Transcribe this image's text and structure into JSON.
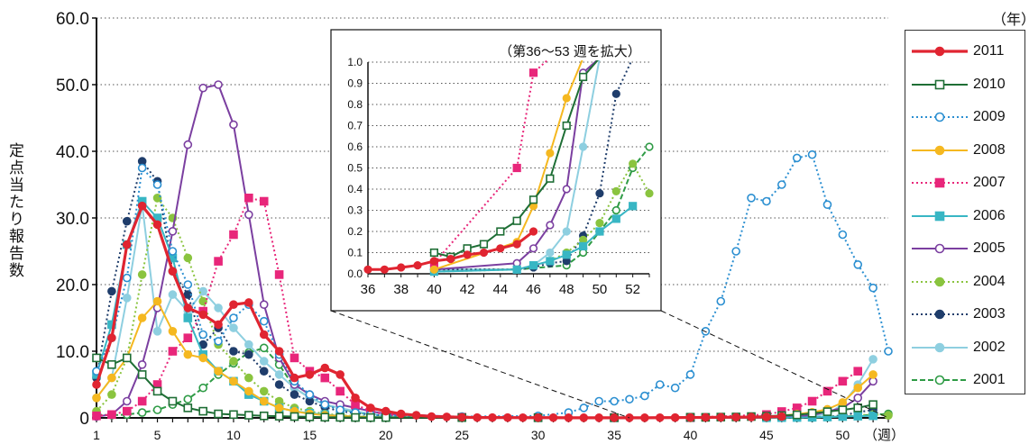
{
  "ylabel": "定点当たり報告数",
  "year_unit": "（年）",
  "week_unit": "（週）",
  "inset_title": "（第36～53 週を拡大）",
  "chart_data": [
    {
      "type": "line",
      "xlabel": "（週）",
      "ylabel": "定点当たり報告数",
      "xlim": [
        1,
        53
      ],
      "ylim": [
        0,
        60
      ],
      "xticks": [
        1,
        5,
        10,
        15,
        20,
        25,
        30,
        35,
        40,
        45,
        50
      ],
      "yticks": [
        "0",
        "10.0",
        "20.0",
        "30.0",
        "40.0",
        "50.0",
        "60.0"
      ],
      "grid": "horizontal dotted",
      "legend_position": "right",
      "legend_title": "（年）",
      "series": [
        {
          "name": "2001",
          "color": "#2e9b45",
          "style": "dashed",
          "marker": "circle-open",
          "x": [
            1,
            2,
            3,
            4,
            5,
            6,
            7,
            8,
            9,
            10,
            11,
            12,
            13,
            14,
            15,
            16,
            17,
            18,
            19,
            20,
            25,
            30,
            35,
            40,
            45,
            48,
            49,
            50,
            51,
            52,
            53
          ],
          "values": [
            0.5,
            0.4,
            0.5,
            0.8,
            1.2,
            2.0,
            2.8,
            4.5,
            6.5,
            8.2,
            9.8,
            10.5,
            8.0,
            4.5,
            3.0,
            2.0,
            1.4,
            0.9,
            0.5,
            0.3,
            0.1,
            0.05,
            0.02,
            0.02,
            0.02,
            0.04,
            0.1,
            0.2,
            0.3,
            0.5,
            0.6
          ]
        },
        {
          "name": "2002",
          "color": "#8ecfe0",
          "style": "solid",
          "marker": "circle",
          "x": [
            1,
            2,
            3,
            4,
            5,
            6,
            7,
            8,
            9,
            10,
            11,
            12,
            13,
            14,
            15,
            16,
            17,
            18,
            19,
            20,
            25,
            30,
            35,
            40,
            45,
            46,
            47,
            48,
            49,
            50,
            51,
            52
          ],
          "values": [
            3.0,
            6.0,
            18.0,
            32.0,
            13.0,
            18.5,
            16.0,
            19.0,
            16.5,
            13.5,
            11.0,
            8.5,
            6.5,
            4.5,
            3.0,
            2.0,
            1.5,
            1.0,
            0.6,
            0.3,
            0.1,
            0.05,
            0.02,
            0.02,
            0.02,
            0.04,
            0.1,
            0.2,
            0.6,
            2.0,
            5.0,
            8.8
          ]
        },
        {
          "name": "2003",
          "color": "#1f3d6b",
          "style": "dotted",
          "marker": "circle",
          "x": [
            1,
            2,
            3,
            4,
            5,
            6,
            7,
            8,
            9,
            10,
            11,
            12,
            13,
            14,
            15,
            16,
            17,
            18,
            19,
            20,
            25,
            30,
            35,
            40,
            45,
            46,
            47,
            48,
            49,
            50,
            51,
            52
          ],
          "values": [
            6.0,
            19.0,
            29.5,
            38.5,
            35.5,
            22.0,
            18.5,
            11.0,
            13.5,
            10.0,
            9.5,
            7.0,
            5.0,
            3.5,
            2.5,
            1.6,
            1.0,
            0.7,
            0.5,
            0.3,
            0.1,
            0.05,
            0.02,
            0.02,
            0.02,
            0.03,
            0.05,
            0.06,
            0.18,
            0.38,
            0.85,
            1.2
          ]
        },
        {
          "name": "2004",
          "color": "#8ac43f",
          "style": "dotted",
          "marker": "circle",
          "x": [
            1,
            2,
            3,
            4,
            5,
            6,
            7,
            8,
            9,
            10,
            11,
            12,
            13,
            14,
            15,
            16,
            17,
            18,
            19,
            20,
            25,
            30,
            35,
            40,
            45,
            46,
            47,
            48,
            49,
            50,
            51,
            52,
            53
          ],
          "values": [
            1.0,
            3.5,
            9.0,
            21.5,
            33.0,
            30.0,
            24.0,
            17.5,
            11.0,
            8.5,
            6.0,
            4.0,
            2.5,
            1.5,
            1.0,
            0.6,
            0.4,
            0.3,
            0.2,
            0.1,
            0.05,
            0.02,
            0.02,
            0.01,
            0.02,
            0.04,
            0.06,
            0.1,
            0.16,
            0.24,
            0.39,
            0.52,
            0.38
          ]
        },
        {
          "name": "2005",
          "color": "#7b3fa0",
          "style": "solid",
          "marker": "circle-open",
          "x": [
            1,
            2,
            3,
            4,
            5,
            6,
            7,
            8,
            9,
            10,
            11,
            12,
            13,
            14,
            15,
            16,
            17,
            18,
            19,
            20,
            25,
            30,
            35,
            40,
            45,
            46,
            47,
            48,
            49,
            50,
            51,
            52
          ],
          "values": [
            0.2,
            0.5,
            2.5,
            8.0,
            16.5,
            28.0,
            41.0,
            49.5,
            50.0,
            44.0,
            30.5,
            17.0,
            9.0,
            5.0,
            3.5,
            2.5,
            2.0,
            1.5,
            1.0,
            0.6,
            0.15,
            0.05,
            0.02,
            0.02,
            0.05,
            0.12,
            0.23,
            0.4,
            0.95,
            1.5,
            3.0,
            5.5
          ]
        },
        {
          "name": "2006",
          "color": "#38b6c4",
          "style": "solid",
          "marker": "square",
          "x": [
            1,
            2,
            3,
            4,
            5,
            6,
            7,
            8,
            9,
            10,
            11,
            12,
            13,
            14,
            15,
            16,
            17,
            18,
            19,
            20,
            25,
            30,
            35,
            40,
            45,
            46,
            47,
            48,
            49,
            50,
            51,
            52
          ],
          "values": [
            6.5,
            14.0,
            26.0,
            32.5,
            30.0,
            24.0,
            15.0,
            9.5,
            7.0,
            5.5,
            3.5,
            2.5,
            1.5,
            1.0,
            0.7,
            0.5,
            0.3,
            0.2,
            0.15,
            0.1,
            0.05,
            0.02,
            0.01,
            0.01,
            0.02,
            0.04,
            0.06,
            0.09,
            0.13,
            0.2,
            0.26,
            0.32
          ]
        },
        {
          "name": "2007",
          "color": "#e8267a",
          "style": "dotted",
          "marker": "square",
          "x": [
            1,
            2,
            3,
            4,
            5,
            6,
            7,
            8,
            9,
            10,
            11,
            12,
            13,
            14,
            15,
            16,
            17,
            18,
            19,
            20,
            25,
            30,
            35,
            40,
            45,
            46,
            47,
            48,
            49,
            50,
            51
          ],
          "values": [
            0.3,
            0.5,
            1.0,
            2.5,
            5.0,
            10.0,
            12.0,
            16.0,
            23.5,
            27.5,
            33.0,
            32.5,
            21.5,
            9.0,
            7.0,
            6.0,
            4.0,
            2.0,
            1.0,
            0.5,
            0.1,
            0.05,
            0.05,
            0.05,
            0.5,
            0.95,
            1.5,
            2.5,
            4.0,
            5.5,
            7.0
          ]
        },
        {
          "name": "2008",
          "color": "#f5b820",
          "style": "solid",
          "marker": "circle",
          "x": [
            1,
            2,
            3,
            4,
            5,
            6,
            7,
            8,
            9,
            10,
            11,
            12,
            13,
            14,
            15,
            16,
            17,
            18,
            19,
            20,
            25,
            30,
            35,
            40,
            45,
            46,
            47,
            48,
            49,
            50,
            51,
            52
          ],
          "values": [
            3.0,
            6.0,
            9.0,
            15.0,
            17.5,
            13.0,
            9.5,
            9.0,
            7.0,
            5.5,
            4.0,
            2.5,
            1.5,
            1.0,
            0.6,
            0.4,
            0.3,
            0.2,
            0.1,
            0.08,
            0.05,
            0.02,
            0.02,
            0.02,
            0.15,
            0.32,
            0.57,
            0.83,
            1.3,
            2.3,
            4.5,
            6.5
          ]
        },
        {
          "name": "2009",
          "color": "#2b8fd1",
          "style": "dotted",
          "marker": "circle-open",
          "x": [
            1,
            2,
            3,
            4,
            5,
            6,
            7,
            8,
            9,
            10,
            11,
            12,
            13,
            14,
            15,
            16,
            17,
            18,
            19,
            20,
            25,
            30,
            32,
            33,
            34,
            35,
            36,
            37,
            38,
            39,
            40,
            41,
            42,
            43,
            44,
            45,
            46,
            47,
            48,
            49,
            50,
            51,
            52,
            53
          ],
          "values": [
            7.0,
            12.0,
            21.0,
            37.5,
            35.0,
            25.0,
            20.0,
            12.5,
            11.5,
            15.0,
            17.0,
            14.5,
            9.5,
            5.5,
            3.5,
            2.0,
            1.2,
            0.8,
            0.5,
            0.3,
            0.2,
            0.3,
            0.8,
            1.5,
            2.5,
            2.5,
            2.8,
            3.3,
            5.0,
            4.5,
            6.5,
            13.0,
            17.5,
            25.0,
            33.0,
            32.5,
            35.0,
            39.0,
            39.5,
            32.0,
            27.5,
            23.0,
            19.5,
            10.0
          ]
        },
        {
          "name": "2010",
          "color": "#1e6e35",
          "style": "solid",
          "marker": "square-open",
          "x": [
            1,
            2,
            3,
            4,
            5,
            6,
            7,
            8,
            9,
            10,
            11,
            12,
            13,
            14,
            15,
            16,
            17,
            18,
            19,
            20,
            25,
            30,
            35,
            40,
            41,
            42,
            43,
            44,
            45,
            46,
            47,
            48,
            49,
            50,
            51,
            52
          ],
          "values": [
            9.0,
            8.0,
            9.0,
            6.5,
            4.0,
            2.5,
            1.5,
            1.0,
            0.6,
            0.5,
            0.4,
            0.3,
            0.25,
            0.2,
            0.15,
            0.1,
            0.08,
            0.06,
            0.05,
            0.05,
            0.04,
            0.03,
            0.03,
            0.1,
            0.08,
            0.12,
            0.14,
            0.2,
            0.25,
            0.35,
            0.45,
            0.7,
            0.93,
            1.2,
            1.5,
            2.0
          ]
        },
        {
          "name": "2011",
          "color": "#e02531",
          "style": "solid",
          "marker": "circle",
          "x": [
            1,
            2,
            3,
            4,
            5,
            6,
            7,
            8,
            9,
            10,
            11,
            12,
            13,
            14,
            15,
            16,
            17,
            18,
            19,
            20,
            21,
            22,
            23,
            24,
            25,
            26,
            27,
            28,
            29,
            30,
            31,
            32,
            33,
            34,
            35,
            36,
            37,
            38,
            39,
            40,
            41,
            42,
            43,
            44,
            45,
            46
          ],
          "values": [
            5.0,
            12.0,
            26.0,
            31.8,
            29.0,
            22.0,
            16.5,
            15.5,
            14.0,
            17.0,
            17.3,
            12.5,
            10.0,
            6.0,
            6.5,
            7.5,
            6.5,
            3.0,
            1.5,
            1.0,
            0.6,
            0.4,
            0.2,
            0.15,
            0.1,
            0.05,
            0.05,
            0.04,
            0.03,
            0.03,
            0.03,
            0.02,
            0.02,
            0.02,
            0.02,
            0.02,
            0.02,
            0.03,
            0.04,
            0.06,
            0.07,
            0.09,
            0.1,
            0.12,
            0.14,
            0.2
          ]
        }
      ]
    },
    {
      "type": "line",
      "title": "（第36～53 週を拡大）",
      "xlim": [
        36,
        53
      ],
      "ylim": [
        0,
        1.0
      ],
      "xticks": [
        36,
        38,
        40,
        42,
        44,
        46,
        48,
        50,
        52
      ],
      "yticks": [
        "0.0",
        "0.1",
        "0.2",
        "0.3",
        "0.4",
        "0.5",
        "0.6",
        "0.7",
        "0.8",
        "0.9",
        "1.0"
      ],
      "grid": "horizontal dotted"
    }
  ]
}
